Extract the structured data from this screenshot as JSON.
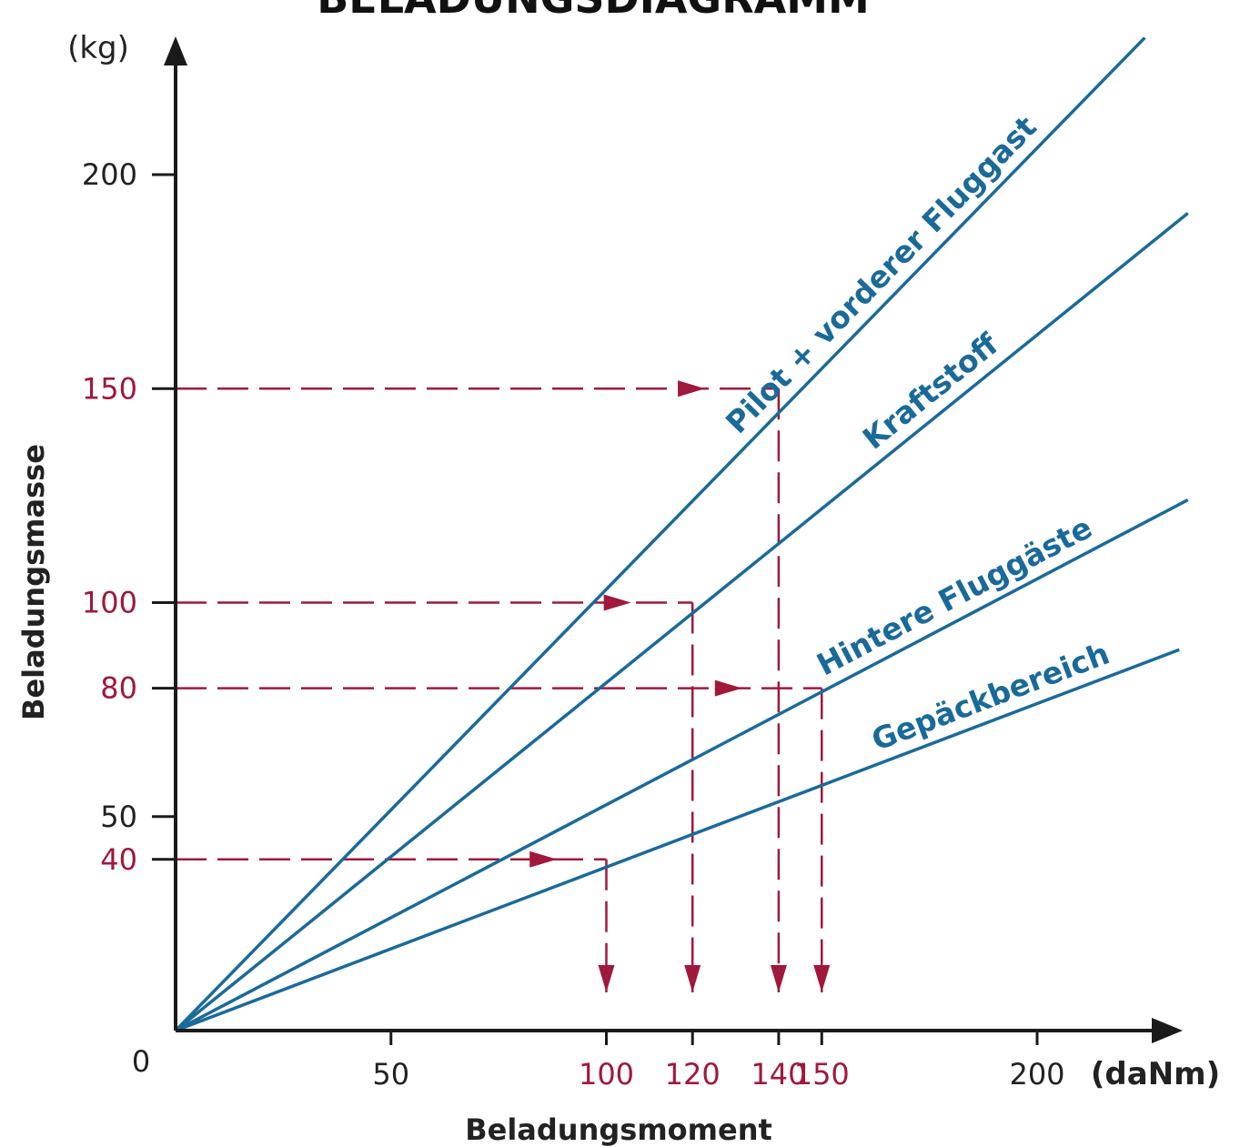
{
  "chart_data": {
    "type": "line",
    "title": "BELADUNGSDIAGRAMM",
    "xlabel": "Beladungsmoment",
    "ylabel": "Beladungsmasse",
    "x_unit": "(daNm)",
    "y_unit": "(kg)",
    "xlim": [
      0,
      230
    ],
    "ylim": [
      0,
      210
    ],
    "origin_label": "0",
    "x_ticks": [
      50,
      200
    ],
    "y_ticks": [
      200,
      150,
      100,
      80,
      50,
      40
    ],
    "x_ticks_highlight": [
      100,
      120,
      140,
      150
    ],
    "y_ticks_highlight": [
      150,
      100,
      80,
      40
    ],
    "grid": false,
    "series": [
      {
        "name": "Pilot + vorderer Fluggast",
        "x": [
          0,
          225
        ],
        "y": [
          0,
          232
        ]
      },
      {
        "name": "Kraftstoff",
        "x": [
          0,
          235
        ],
        "y": [
          0,
          191
        ]
      },
      {
        "name": "Hintere Fluggäste",
        "x": [
          0,
          235
        ],
        "y": [
          0,
          124
        ]
      },
      {
        "name": "Gepäckbereich",
        "x": [
          0,
          233
        ],
        "y": [
          0,
          89
        ]
      }
    ],
    "examples": [
      {
        "mass": 150,
        "moment": 140
      },
      {
        "mass": 100,
        "moment": 120
      },
      {
        "mass": 80,
        "moment": 150
      },
      {
        "mass": 40,
        "moment": 100
      }
    ],
    "colors": {
      "series": "#1a6a99",
      "example": "#a0183c",
      "axis": "#1a1a1a"
    }
  }
}
